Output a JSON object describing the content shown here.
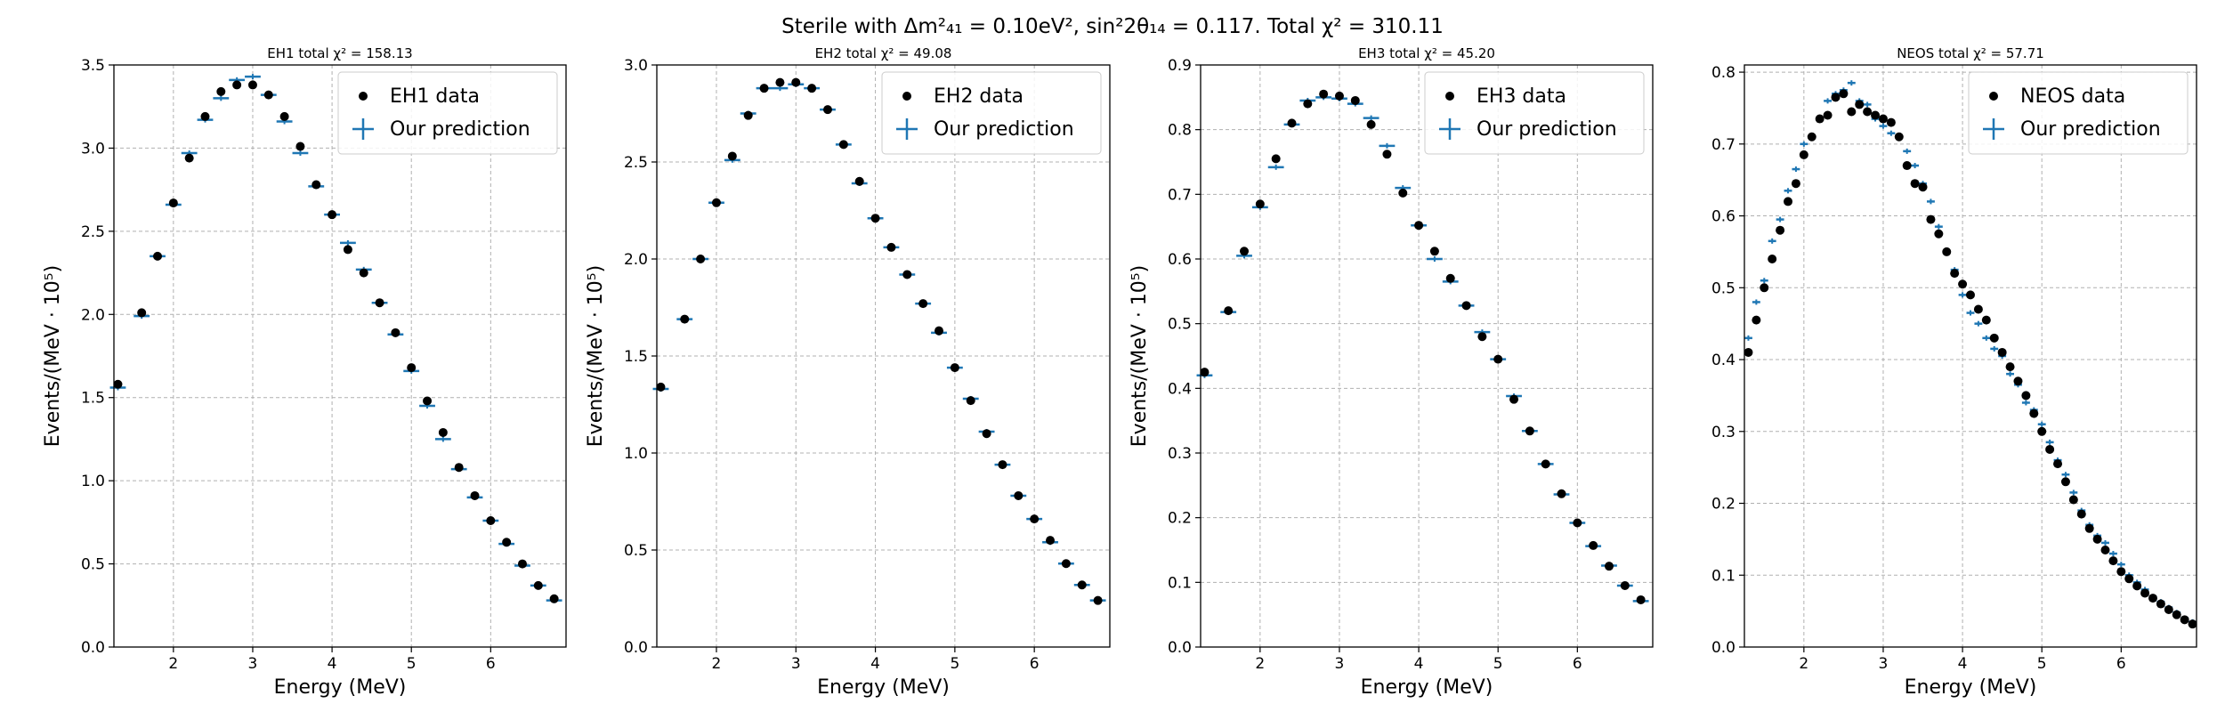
{
  "suptitle": "Sterile with Δm²₄₁ = 0.10eV², sin²2θ₁₄ = 0.117. Total χ² = 310.11",
  "colors": {
    "data": "#000000",
    "prediction": "#1f77b4",
    "grid": "#b0b0b0"
  },
  "chart_data": [
    {
      "type": "scatter",
      "title": "EH1 total χ² = 158.13",
      "xlabel": "Energy (MeV)",
      "ylabel": "Events/(MeV · 10⁵)",
      "xlim": [
        1.25,
        6.95
      ],
      "ylim": [
        0,
        3.5
      ],
      "xticks": [
        2,
        3,
        4,
        5,
        6
      ],
      "yticks": [
        0.0,
        0.5,
        1.0,
        1.5,
        2.0,
        2.5,
        3.0,
        3.5
      ],
      "ytick_labels": [
        "0.0",
        "0.5",
        "1.0",
        "1.5",
        "2.0",
        "2.5",
        "3.0",
        "3.5"
      ],
      "grid": true,
      "legend_loc": "upper right",
      "pred_half_width": 0.1,
      "series": [
        {
          "name": "EH1 data",
          "kind": "points",
          "x": [
            1.3,
            1.6,
            1.8,
            2.0,
            2.2,
            2.4,
            2.6,
            2.8,
            3.0,
            3.2,
            3.4,
            3.6,
            3.8,
            4.0,
            4.2,
            4.4,
            4.6,
            4.8,
            5.0,
            5.2,
            5.4,
            5.6,
            5.8,
            6.0,
            6.2,
            6.4,
            6.6,
            6.8
          ],
          "y": [
            1.58,
            2.01,
            2.35,
            2.67,
            2.94,
            3.19,
            3.34,
            3.38,
            3.38,
            3.32,
            3.19,
            3.01,
            2.78,
            2.6,
            2.39,
            2.25,
            2.07,
            1.89,
            1.68,
            1.48,
            1.29,
            1.08,
            0.91,
            0.76,
            0.63,
            0.5,
            0.37,
            0.29
          ]
        },
        {
          "name": "Our prediction",
          "kind": "crosses",
          "x": [
            1.3,
            1.6,
            1.8,
            2.0,
            2.2,
            2.4,
            2.6,
            2.8,
            3.0,
            3.2,
            3.4,
            3.6,
            3.8,
            4.0,
            4.2,
            4.4,
            4.6,
            4.8,
            5.0,
            5.2,
            5.4,
            5.6,
            5.8,
            6.0,
            6.2,
            6.4,
            6.6,
            6.8
          ],
          "y": [
            1.56,
            1.99,
            2.35,
            2.66,
            2.97,
            3.17,
            3.3,
            3.41,
            3.43,
            3.32,
            3.16,
            2.97,
            2.77,
            2.6,
            2.43,
            2.27,
            2.07,
            1.88,
            1.66,
            1.45,
            1.25,
            1.07,
            0.9,
            0.76,
            0.62,
            0.49,
            0.37,
            0.28
          ]
        }
      ]
    },
    {
      "type": "scatter",
      "title": "EH2 total χ² = 49.08",
      "xlabel": "Energy (MeV)",
      "ylabel": "Events/(MeV · 10⁵)",
      "xlim": [
        1.25,
        6.95
      ],
      "ylim": [
        0,
        3.0
      ],
      "xticks": [
        2,
        3,
        4,
        5,
        6
      ],
      "yticks": [
        0.0,
        0.5,
        1.0,
        1.5,
        2.0,
        2.5,
        3.0
      ],
      "ytick_labels": [
        "0.0",
        "0.5",
        "1.0",
        "1.5",
        "2.0",
        "2.5",
        "3.0"
      ],
      "grid": true,
      "legend_loc": "upper right",
      "pred_half_width": 0.1,
      "series": [
        {
          "name": "EH2 data",
          "kind": "points",
          "x": [
            1.3,
            1.6,
            1.8,
            2.0,
            2.2,
            2.4,
            2.6,
            2.8,
            3.0,
            3.2,
            3.4,
            3.6,
            3.8,
            4.0,
            4.2,
            4.4,
            4.6,
            4.8,
            5.0,
            5.2,
            5.4,
            5.6,
            5.8,
            6.0,
            6.2,
            6.4,
            6.6,
            6.8
          ],
          "y": [
            1.34,
            1.69,
            2.0,
            2.29,
            2.53,
            2.74,
            2.88,
            2.91,
            2.91,
            2.88,
            2.77,
            2.59,
            2.4,
            2.21,
            2.06,
            1.92,
            1.77,
            1.63,
            1.44,
            1.27,
            1.1,
            0.94,
            0.78,
            0.66,
            0.55,
            0.43,
            0.32,
            0.24
          ]
        },
        {
          "name": "Our prediction",
          "kind": "crosses",
          "x": [
            1.3,
            1.6,
            1.8,
            2.0,
            2.2,
            2.4,
            2.6,
            2.8,
            3.0,
            3.2,
            3.4,
            3.6,
            3.8,
            4.0,
            4.2,
            4.4,
            4.6,
            4.8,
            5.0,
            5.2,
            5.4,
            5.6,
            5.8,
            6.0,
            6.2,
            6.4,
            6.6,
            6.8
          ],
          "y": [
            1.33,
            1.69,
            2.0,
            2.29,
            2.51,
            2.75,
            2.88,
            2.88,
            2.9,
            2.88,
            2.77,
            2.59,
            2.39,
            2.21,
            2.06,
            1.92,
            1.77,
            1.62,
            1.44,
            1.28,
            1.11,
            0.94,
            0.78,
            0.66,
            0.54,
            0.43,
            0.32,
            0.24
          ]
        }
      ]
    },
    {
      "type": "scatter",
      "title": "EH3 total χ² = 45.20",
      "xlabel": "Energy (MeV)",
      "ylabel": "Events/(MeV · 10⁵)",
      "xlim": [
        1.25,
        6.95
      ],
      "ylim": [
        0,
        0.9
      ],
      "xticks": [
        2,
        3,
        4,
        5,
        6
      ],
      "yticks": [
        0.0,
        0.1,
        0.2,
        0.3,
        0.4,
        0.5,
        0.6,
        0.7,
        0.8,
        0.9
      ],
      "ytick_labels": [
        "0.0",
        "0.1",
        "0.2",
        "0.3",
        "0.4",
        "0.5",
        "0.6",
        "0.7",
        "0.8",
        "0.9"
      ],
      "grid": true,
      "legend_loc": "upper right",
      "pred_half_width": 0.1,
      "series": [
        {
          "name": "EH3 data",
          "kind": "points",
          "x": [
            1.3,
            1.6,
            1.8,
            2.0,
            2.2,
            2.4,
            2.6,
            2.8,
            3.0,
            3.2,
            3.4,
            3.6,
            3.8,
            4.0,
            4.2,
            4.4,
            4.6,
            4.8,
            5.0,
            5.2,
            5.4,
            5.6,
            5.8,
            6.0,
            6.2,
            6.4,
            6.6,
            6.8
          ],
          "y": [
            0.425,
            0.52,
            0.612,
            0.685,
            0.755,
            0.81,
            0.84,
            0.855,
            0.852,
            0.845,
            0.808,
            0.762,
            0.702,
            0.652,
            0.612,
            0.57,
            0.528,
            0.48,
            0.445,
            0.383,
            0.334,
            0.283,
            0.237,
            0.192,
            0.157,
            0.125,
            0.095,
            0.073
          ]
        },
        {
          "name": "Our prediction",
          "kind": "crosses",
          "x": [
            1.3,
            1.6,
            1.8,
            2.0,
            2.2,
            2.4,
            2.6,
            2.8,
            3.0,
            3.2,
            3.4,
            3.6,
            3.8,
            4.0,
            4.2,
            4.4,
            4.6,
            4.8,
            5.0,
            5.2,
            5.4,
            5.6,
            5.8,
            6.0,
            6.2,
            6.4,
            6.6,
            6.8
          ],
          "y": [
            0.42,
            0.518,
            0.605,
            0.68,
            0.742,
            0.808,
            0.845,
            0.85,
            0.848,
            0.84,
            0.818,
            0.775,
            0.71,
            0.652,
            0.6,
            0.565,
            0.528,
            0.487,
            0.445,
            0.388,
            0.334,
            0.283,
            0.236,
            0.192,
            0.156,
            0.126,
            0.095,
            0.071
          ]
        }
      ]
    },
    {
      "type": "scatter",
      "title": "NEOS total χ² = 57.71",
      "xlabel": "Energy (MeV)",
      "ylabel": "",
      "xlim": [
        1.25,
        6.95
      ],
      "ylim": [
        0,
        0.81
      ],
      "xticks": [
        2,
        3,
        4,
        5,
        6
      ],
      "yticks": [
        0.0,
        0.1,
        0.2,
        0.3,
        0.4,
        0.5,
        0.6,
        0.7,
        0.8
      ],
      "ytick_labels": [
        "0.0",
        "0.1",
        "0.2",
        "0.3",
        "0.4",
        "0.5",
        "0.6",
        "0.7",
        "0.8"
      ],
      "grid": true,
      "legend_loc": "upper right",
      "pred_half_width": 0.05,
      "series": [
        {
          "name": "NEOS data",
          "kind": "points",
          "x": [
            1.3,
            1.4,
            1.5,
            1.6,
            1.7,
            1.8,
            1.9,
            2.0,
            2.1,
            2.2,
            2.3,
            2.4,
            2.5,
            2.6,
            2.7,
            2.8,
            2.9,
            3.0,
            3.1,
            3.2,
            3.3,
            3.4,
            3.5,
            3.6,
            3.7,
            3.8,
            3.9,
            4.0,
            4.1,
            4.2,
            4.3,
            4.4,
            4.5,
            4.6,
            4.7,
            4.8,
            4.9,
            5.0,
            5.1,
            5.2,
            5.3,
            5.4,
            5.5,
            5.6,
            5.7,
            5.8,
            5.9,
            6.0,
            6.1,
            6.2,
            6.3,
            6.4,
            6.5,
            6.6,
            6.7,
            6.8,
            6.9
          ],
          "y": [
            0.41,
            0.455,
            0.5,
            0.54,
            0.58,
            0.62,
            0.645,
            0.685,
            0.71,
            0.735,
            0.74,
            0.765,
            0.77,
            0.745,
            0.755,
            0.745,
            0.74,
            0.735,
            0.73,
            0.71,
            0.67,
            0.645,
            0.64,
            0.595,
            0.575,
            0.55,
            0.52,
            0.505,
            0.49,
            0.47,
            0.455,
            0.43,
            0.41,
            0.39,
            0.37,
            0.35,
            0.325,
            0.3,
            0.275,
            0.255,
            0.23,
            0.205,
            0.185,
            0.165,
            0.15,
            0.135,
            0.12,
            0.105,
            0.095,
            0.085,
            0.075,
            0.068,
            0.06,
            0.052,
            0.045,
            0.038,
            0.032
          ]
        },
        {
          "name": "Our prediction",
          "kind": "crosses",
          "x": [
            1.3,
            1.4,
            1.5,
            1.6,
            1.7,
            1.8,
            1.9,
            2.0,
            2.1,
            2.2,
            2.3,
            2.4,
            2.5,
            2.6,
            2.7,
            2.8,
            2.9,
            3.0,
            3.1,
            3.2,
            3.3,
            3.4,
            3.5,
            3.6,
            3.7,
            3.8,
            3.9,
            4.0,
            4.1,
            4.2,
            4.3,
            4.4,
            4.5,
            4.6,
            4.7,
            4.8,
            4.9,
            5.0,
            5.1,
            5.2,
            5.3,
            5.4,
            5.5,
            5.6,
            5.7,
            5.8,
            5.9,
            6.0,
            6.1,
            6.2,
            6.3,
            6.4,
            6.5,
            6.6,
            6.7,
            6.8,
            6.9
          ],
          "y": [
            0.43,
            0.48,
            0.51,
            0.565,
            0.595,
            0.635,
            0.665,
            0.7,
            0.71,
            0.735,
            0.76,
            0.77,
            0.775,
            0.785,
            0.76,
            0.755,
            0.735,
            0.725,
            0.715,
            0.71,
            0.69,
            0.67,
            0.645,
            0.62,
            0.585,
            0.55,
            0.525,
            0.49,
            0.465,
            0.45,
            0.43,
            0.415,
            0.405,
            0.38,
            0.365,
            0.34,
            0.33,
            0.31,
            0.285,
            0.26,
            0.24,
            0.215,
            0.19,
            0.17,
            0.155,
            0.145,
            0.13,
            0.115,
            0.1,
            0.09,
            0.08,
            0.07,
            0.063,
            0.055,
            0.048,
            0.04,
            0.035
          ]
        }
      ]
    }
  ]
}
